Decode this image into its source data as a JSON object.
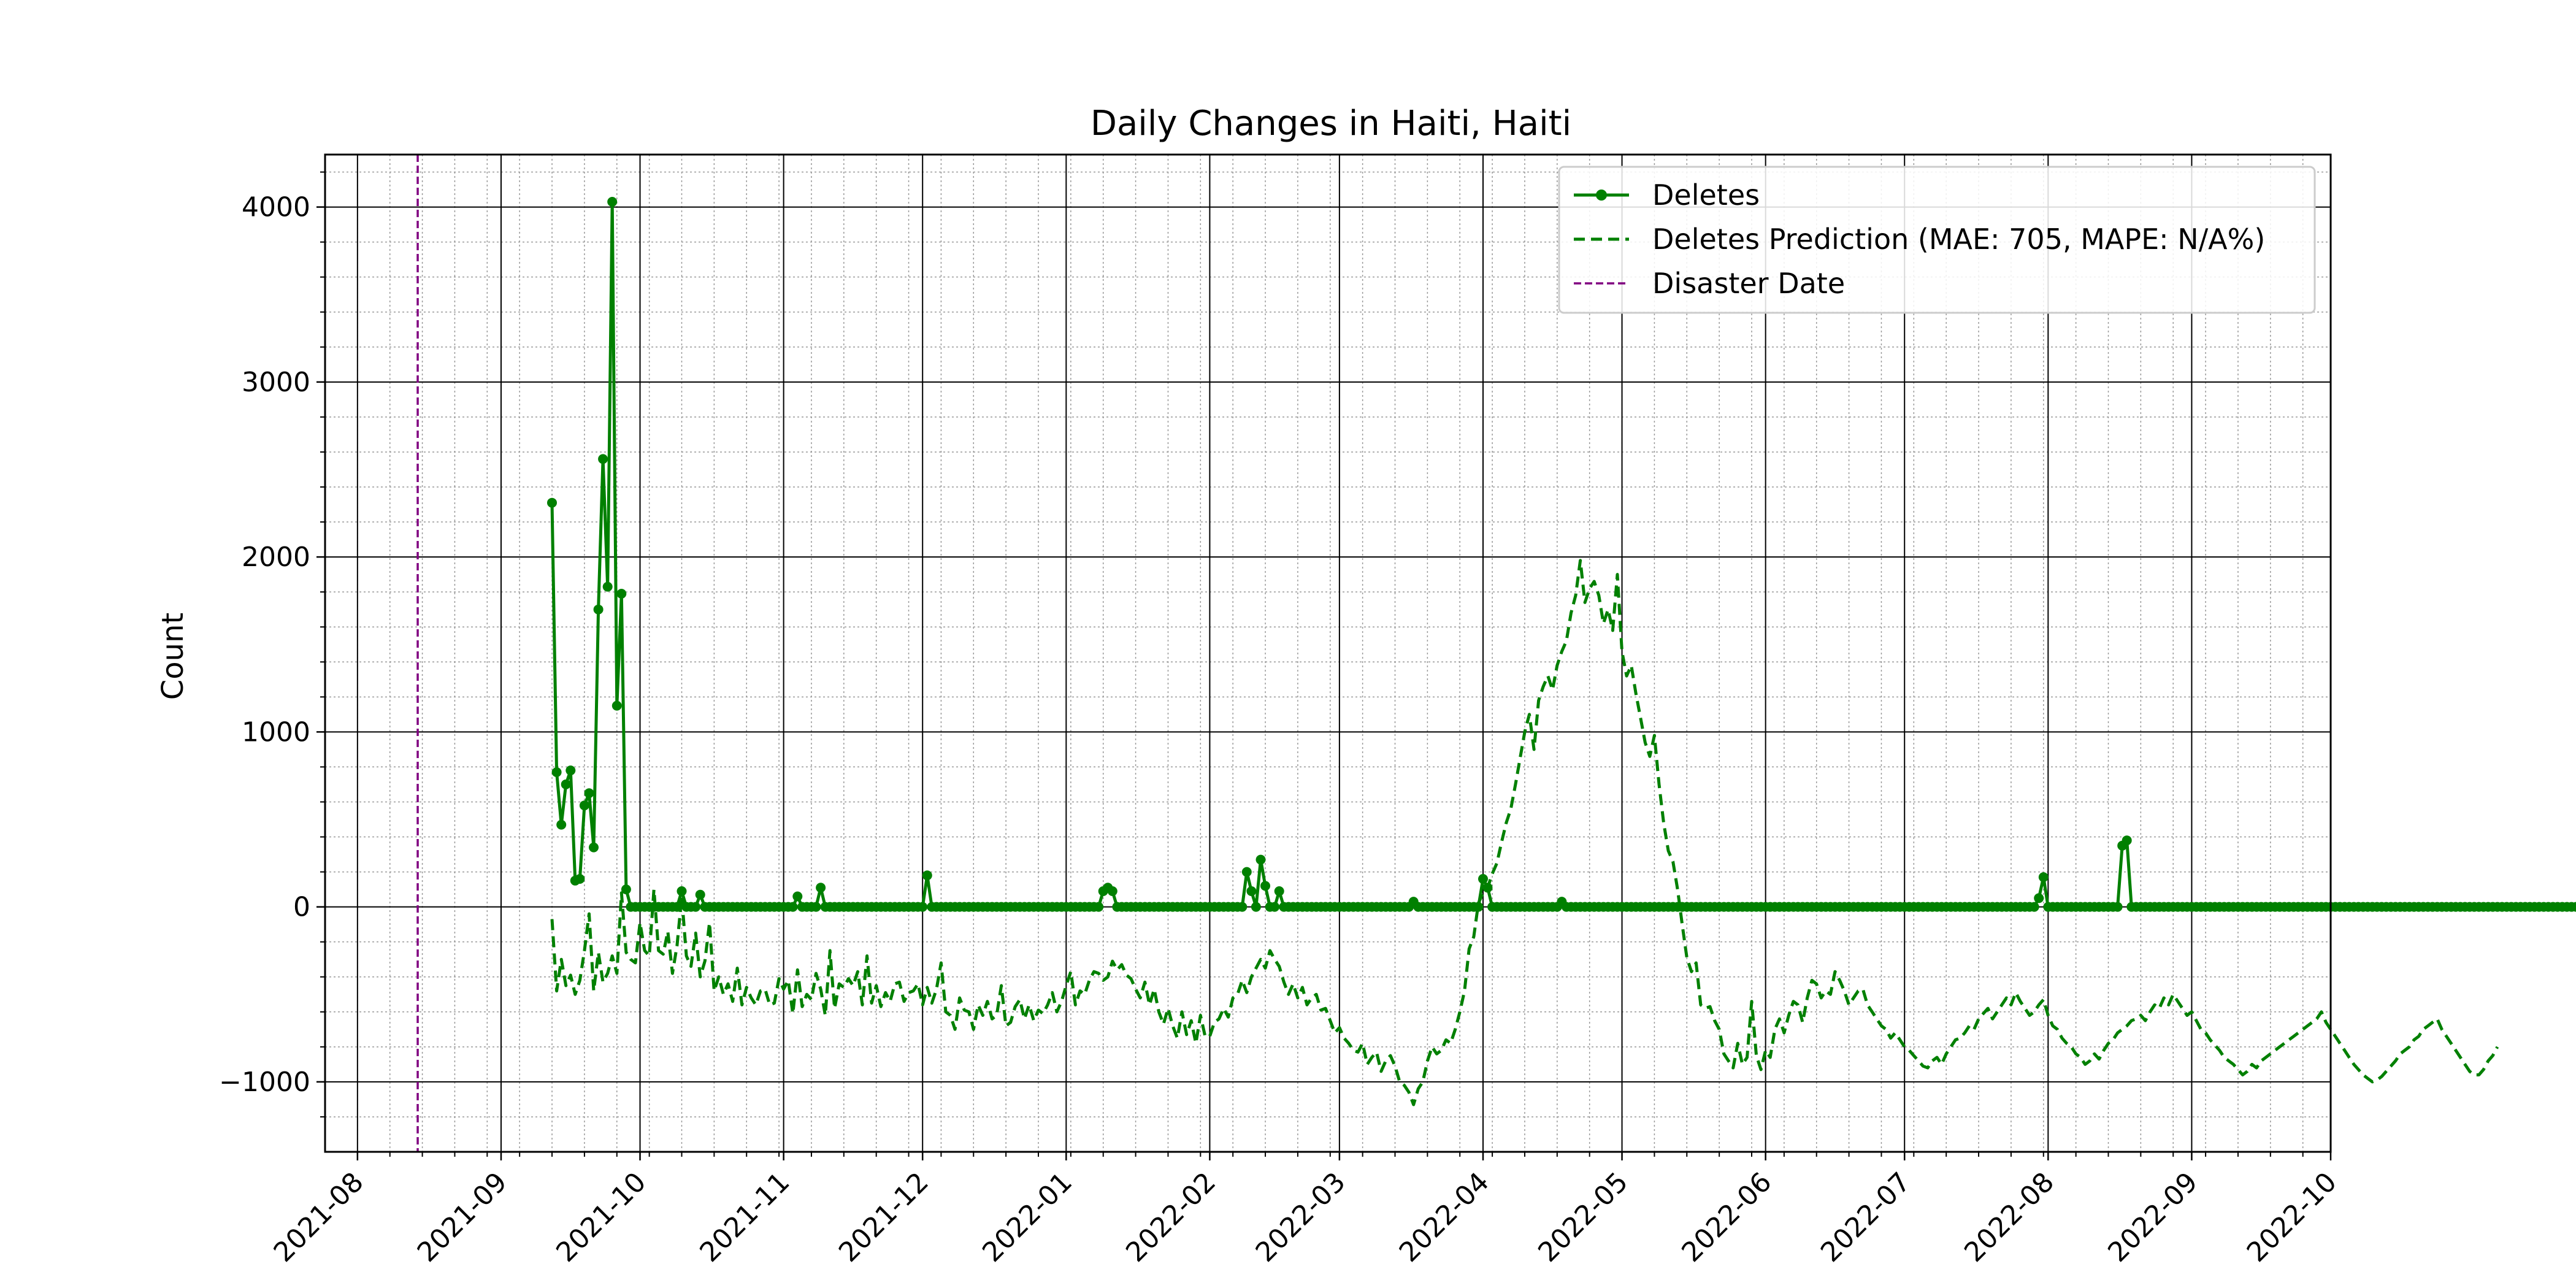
{
  "chart_data": {
    "type": "line",
    "title": "Daily Changes in Haiti, Haiti",
    "xlabel": "",
    "ylabel": "Count",
    "x_ticks": [
      "2021-08",
      "2021-09",
      "2021-10",
      "2021-11",
      "2021-12",
      "2022-01",
      "2022-02",
      "2022-03",
      "2022-04",
      "2022-05",
      "2022-06",
      "2022-07",
      "2022-08",
      "2022-09",
      "2022-10"
    ],
    "y_ticks": [
      -1000,
      0,
      1000,
      2000,
      3000,
      4000
    ],
    "y_tick_labels": [
      "−1000",
      "0",
      "1000",
      "2000",
      "3000",
      "4000"
    ],
    "xlim": [
      "2021-07-25",
      "2022-10-01"
    ],
    "ylim": [
      -1400,
      4300
    ],
    "grid": true,
    "minor_grid": true,
    "legend_position": "top-right",
    "colors": {
      "deletes": "#008000",
      "prediction": "#008000",
      "disaster": "#800080",
      "major_grid": "#000000",
      "minor_grid": "#999999"
    },
    "series": [
      {
        "name": "Deletes",
        "style": "solid-markers",
        "start_date": "2021-09-12",
        "values": [
          2310,
          770,
          470,
          700,
          780,
          150,
          160,
          580,
          650,
          340,
          1700,
          2560,
          1830,
          4030,
          1150,
          1790,
          100,
          0,
          0,
          0,
          0,
          0,
          0,
          0,
          0,
          0,
          0,
          0,
          90,
          0,
          0,
          0,
          70,
          0,
          0,
          0,
          0,
          0,
          0,
          0,
          0,
          0,
          0,
          0,
          0,
          0,
          0,
          0,
          0,
          0,
          0,
          0,
          0,
          60,
          0,
          0,
          0,
          0,
          110,
          0,
          0,
          0,
          0,
          0,
          0,
          0,
          0,
          0,
          0,
          0,
          0,
          0,
          0,
          0,
          0,
          0,
          0,
          0,
          0,
          0,
          0,
          180,
          0,
          0,
          0,
          0,
          0,
          0,
          0,
          0,
          0,
          0,
          0,
          0,
          0,
          0,
          0,
          0,
          0,
          0,
          0,
          0,
          0,
          0,
          0,
          0,
          0,
          0,
          0,
          0,
          0,
          0,
          0,
          0,
          0,
          0,
          0,
          0,
          0,
          90,
          110,
          90,
          0,
          0,
          0,
          0,
          0,
          0,
          0,
          0,
          0,
          0,
          0,
          0,
          0,
          0,
          0,
          0,
          0,
          0,
          0,
          0,
          0,
          0,
          0,
          0,
          0,
          0,
          0,
          0,
          200,
          90,
          0,
          270,
          120,
          0,
          0,
          90,
          0,
          0,
          0,
          0,
          0,
          0,
          0,
          0,
          0,
          0,
          0,
          0,
          0,
          0,
          0,
          0,
          0,
          0,
          0,
          0,
          0,
          0,
          0,
          0,
          0,
          0,
          0,
          0,
          30,
          0,
          0,
          0,
          0,
          0,
          0,
          0,
          0,
          0,
          0,
          0,
          0,
          0,
          0,
          160,
          110,
          0,
          0,
          0,
          0,
          0,
          0,
          0,
          0,
          0,
          0,
          0,
          0,
          0,
          0,
          0,
          30,
          0,
          0,
          0,
          0,
          0,
          0,
          0,
          0,
          0,
          0,
          0,
          0,
          0,
          0,
          0,
          0,
          0,
          0,
          0,
          0,
          0,
          0,
          0,
          0,
          0,
          0,
          0,
          0,
          0,
          0,
          0,
          0,
          0,
          0,
          0,
          0,
          0,
          0,
          0,
          0,
          0,
          0,
          0,
          0,
          0,
          0,
          0,
          0,
          0,
          0,
          0,
          0,
          0,
          0,
          0,
          0,
          0,
          0,
          0,
          0,
          0,
          0,
          0,
          0,
          0,
          0,
          0,
          0,
          0,
          0,
          0,
          0,
          0,
          0,
          0,
          0,
          0,
          0,
          0,
          0,
          0,
          0,
          0,
          0,
          0,
          0,
          0,
          0,
          0,
          0,
          0,
          0,
          0,
          0,
          0,
          0,
          0,
          0,
          0,
          0,
          0,
          0,
          50,
          170,
          0,
          0,
          0,
          0,
          0,
          0,
          0,
          0,
          0,
          0,
          0,
          0,
          0,
          0,
          0,
          0,
          350,
          380,
          0,
          0,
          0,
          0,
          0,
          0,
          0,
          0,
          0,
          0,
          0,
          0,
          0,
          0,
          0,
          0,
          0,
          0,
          0,
          0,
          0,
          0,
          0,
          0,
          0,
          0,
          0,
          0,
          0,
          0,
          0,
          0,
          0,
          0,
          0,
          0,
          0,
          0,
          0,
          0,
          0,
          0,
          0,
          0,
          0,
          0,
          0,
          0,
          0,
          0,
          0,
          0,
          0,
          0,
          0,
          0,
          0,
          0,
          0,
          0,
          0,
          0,
          0,
          0,
          0,
          0,
          0,
          0,
          0,
          0,
          0,
          0,
          0,
          0,
          0,
          0,
          0,
          0,
          0,
          0,
          0,
          0,
          0,
          0,
          0,
          0,
          0,
          0,
          0,
          0,
          0,
          0,
          0,
          0,
          0,
          0,
          0,
          0,
          0,
          0,
          0,
          0,
          0,
          0,
          0,
          0,
          0,
          0,
          0,
          0,
          0,
          0,
          0,
          0,
          0,
          0,
          0,
          0,
          0,
          0,
          0,
          0,
          0,
          0,
          0,
          0,
          0,
          0
        ]
      },
      {
        "name": "Deletes Prediction (MAE: 705, MAPE: N/A%)",
        "style": "dashed",
        "start_date": "2021-09-12",
        "values": [
          -70,
          -480,
          -300,
          -450,
          -390,
          -500,
          -420,
          -250,
          -40,
          -480,
          -260,
          -430,
          -380,
          -280,
          -380,
          80,
          -260,
          -300,
          -320,
          -90,
          -250,
          -280,
          100,
          -250,
          -270,
          -140,
          -380,
          -220,
          60,
          -280,
          -340,
          -150,
          -400,
          -310,
          -90,
          -480,
          -400,
          -500,
          -440,
          -540,
          -350,
          -560,
          -460,
          -520,
          -560,
          -480,
          -470,
          -560,
          -550,
          -410,
          -470,
          -420,
          -610,
          -360,
          -570,
          -500,
          -530,
          -380,
          -470,
          -620,
          -250,
          -580,
          -440,
          -460,
          -410,
          -450,
          -370,
          -560,
          -280,
          -550,
          -450,
          -570,
          -490,
          -540,
          -440,
          -430,
          -540,
          -490,
          -480,
          -440,
          -560,
          -460,
          -550,
          -470,
          -320,
          -600,
          -620,
          -700,
          -520,
          -590,
          -600,
          -700,
          -560,
          -620,
          -540,
          -640,
          -620,
          -450,
          -680,
          -660,
          -570,
          -530,
          -640,
          -560,
          -650,
          -590,
          -610,
          -560,
          -490,
          -600,
          -540,
          -450,
          -370,
          -560,
          -480,
          -500,
          -420,
          -370,
          -380,
          -420,
          -400,
          -310,
          -360,
          -330,
          -390,
          -410,
          -470,
          -520,
          -430,
          -560,
          -470,
          -600,
          -670,
          -580,
          -680,
          -750,
          -600,
          -730,
          -650,
          -780,
          -620,
          -740,
          -740,
          -660,
          -640,
          -580,
          -630,
          -520,
          -500,
          -420,
          -490,
          -400,
          -350,
          -300,
          -350,
          -250,
          -300,
          -340,
          -430,
          -500,
          -440,
          -520,
          -460,
          -560,
          -520,
          -500,
          -590,
          -580,
          -650,
          -720,
          -690,
          -750,
          -780,
          -820,
          -830,
          -780,
          -900,
          -860,
          -830,
          -940,
          -880,
          -850,
          -910,
          -1000,
          -1020,
          -1060,
          -1130,
          -1040,
          -1000,
          -880,
          -800,
          -840,
          -820,
          -760,
          -780,
          -700,
          -600,
          -480,
          -240,
          -170,
          20,
          80,
          110,
          190,
          250,
          370,
          480,
          560,
          700,
          850,
          1000,
          1100,
          900,
          1180,
          1260,
          1320,
          1240,
          1380,
          1460,
          1520,
          1680,
          1780,
          1980,
          1740,
          1820,
          1860,
          1780,
          1620,
          1700,
          1580,
          1900,
          1460,
          1320,
          1380,
          1220,
          1080,
          940,
          860,
          980,
          700,
          480,
          320,
          260,
          100,
          -100,
          -290,
          -370,
          -320,
          -560,
          -580,
          -570,
          -650,
          -700,
          -840,
          -880,
          -920,
          -780,
          -900,
          -860,
          -540,
          -850,
          -930,
          -820,
          -860,
          -700,
          -640,
          -720,
          -620,
          -540,
          -560,
          -660,
          -520,
          -420,
          -440,
          -520,
          -480,
          -500,
          -370,
          -420,
          -480,
          -560,
          -520,
          -480,
          -470,
          -560,
          -600,
          -640,
          -680,
          -700,
          -750,
          -720,
          -760,
          -800,
          -820,
          -850,
          -880,
          -910,
          -920,
          -880,
          -860,
          -900,
          -840,
          -800,
          -760,
          -750,
          -720,
          -680,
          -700,
          -640,
          -610,
          -580,
          -640,
          -600,
          -560,
          -520,
          -560,
          -490,
          -540,
          -580,
          -620,
          -600,
          -560,
          -530,
          -620,
          -680,
          -700,
          -750,
          -780,
          -800,
          -840,
          -860,
          -900,
          -880,
          -840,
          -870,
          -820,
          -780,
          -760,
          -720,
          -700,
          -680,
          -650,
          -640,
          -620,
          -650,
          -600,
          -560,
          -580,
          -520,
          -560,
          -500,
          -540,
          -580,
          -620,
          -600,
          -650,
          -700,
          -720,
          -760,
          -790,
          -820,
          -860,
          -880,
          -900,
          -930,
          -960,
          -940,
          -900,
          -920,
          -880,
          -860,
          -840,
          -820,
          -800,
          -780,
          -760,
          -740,
          -720,
          -700,
          -680,
          -660,
          -640,
          -600,
          -660,
          -700,
          -740,
          -780,
          -820,
          -860,
          -900,
          -930,
          -960,
          -980,
          -1000,
          -990,
          -970,
          -940,
          -910,
          -880,
          -840,
          -820,
          -800,
          -760,
          -740,
          -700,
          -680,
          -660,
          -640,
          -700,
          -740,
          -780,
          -820,
          -860,
          -900,
          -940,
          -960,
          -960,
          -930,
          -880,
          -850,
          -800
        ]
      },
      {
        "name": "Disaster Date",
        "style": "vline-dashed",
        "x": "2021-08-14"
      }
    ]
  }
}
